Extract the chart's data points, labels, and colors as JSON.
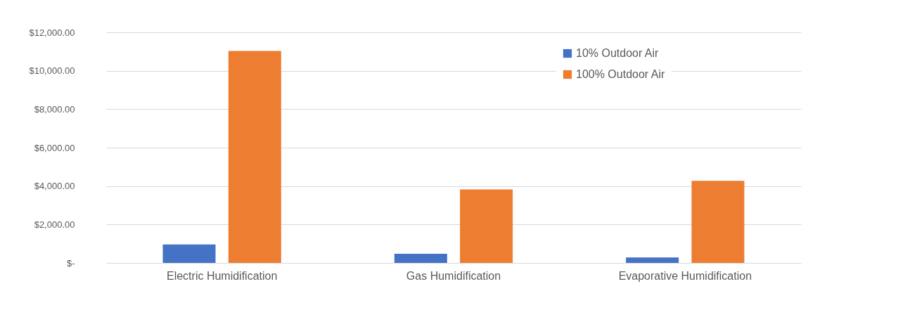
{
  "chart_data": {
    "type": "bar",
    "categories": [
      "Electric Humidification",
      "Gas Humidification",
      "Evaporative Humidification"
    ],
    "series": [
      {
        "name": "10% Outdoor Air",
        "color": "#4472c4",
        "values": [
          960,
          480,
          280
        ]
      },
      {
        "name": "100% Outdoor Air",
        "color": "#ed7d31",
        "values": [
          11030,
          3820,
          4270
        ]
      }
    ],
    "ylim": [
      0,
      12000
    ],
    "yticks": [
      {
        "value": 0,
        "label": "$-"
      },
      {
        "value": 2000,
        "label": "$2,000.00"
      },
      {
        "value": 4000,
        "label": "$4,000.00"
      },
      {
        "value": 6000,
        "label": "$6,000.00"
      },
      {
        "value": 8000,
        "label": "$8,000.00"
      },
      {
        "value": 10000,
        "label": "$10,000.00"
      },
      {
        "value": 12000,
        "label": "$12,000.00"
      }
    ],
    "grid": "y",
    "legend": "top right"
  }
}
